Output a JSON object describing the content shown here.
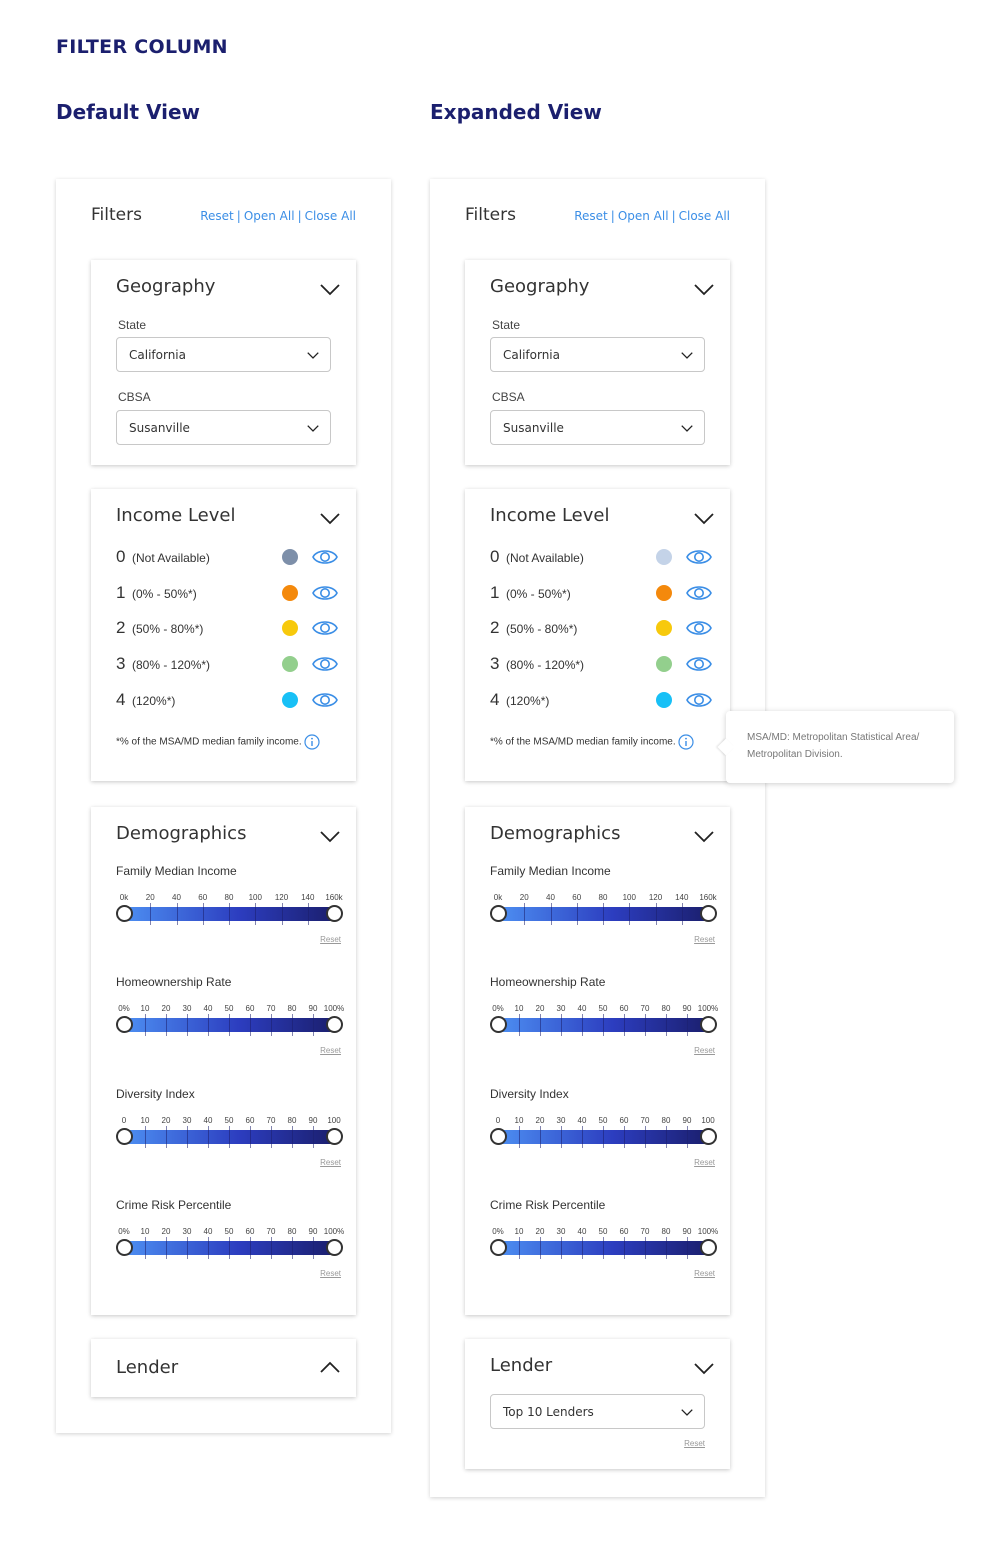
{
  "page": {
    "title": "FILTER COLUMN"
  },
  "default_view": {
    "title": "Default View"
  },
  "expanded_view": {
    "title": "Expanded View"
  },
  "filters": {
    "label": "Filters",
    "reset": "Reset",
    "open_all": "Open All",
    "close_all": "Close All",
    "separator": "|"
  },
  "geography": {
    "title": "Geography",
    "state_label": "State",
    "state_value": "California",
    "cbsa_label": "CBSA",
    "cbsa_value": "Susanville"
  },
  "income": {
    "title": "Income Level",
    "levels": [
      {
        "num": "0",
        "range": "(Not Available)"
      },
      {
        "num": "1",
        "range": "(0% - 50%*)"
      },
      {
        "num": "2",
        "range": "(50% - 80%*)"
      },
      {
        "num": "3",
        "range": "(80% - 120%*)"
      },
      {
        "num": "4",
        "range": "(120%*)"
      }
    ],
    "colors_default": [
      "#7d8fa9",
      "#f4890c",
      "#f7c90c",
      "#93cf8d",
      "#18c0f6"
    ],
    "colors_expanded": [
      "#c4d3e8",
      "#f4890c",
      "#f7c90c",
      "#93cf8d",
      "#18c0f6"
    ],
    "footnote": "*% of the MSA/MD median family income."
  },
  "tooltip": {
    "text": "MSA/MD: Metropolitan Statistical Area/ Metropolitan Division."
  },
  "demographics": {
    "title": "Demographics",
    "reset": "Reset",
    "sliders": [
      {
        "label": "Family Median Income",
        "ticks": [
          "0k",
          "20",
          "40",
          "60",
          "80",
          "100",
          "120",
          "140",
          "160k"
        ],
        "min": 0,
        "max": 160
      },
      {
        "label": "Homeownership Rate",
        "ticks": [
          "0%",
          "10",
          "20",
          "30",
          "40",
          "50",
          "60",
          "70",
          "80",
          "90",
          "100%"
        ],
        "min": 0,
        "max": 100
      },
      {
        "label": "Diversity Index",
        "ticks": [
          "0",
          "10",
          "20",
          "30",
          "40",
          "50",
          "60",
          "70",
          "80",
          "90",
          "100"
        ],
        "min": 0,
        "max": 100
      },
      {
        "label": "Crime Risk Percentile",
        "ticks": [
          "0%",
          "10",
          "20",
          "30",
          "40",
          "50",
          "60",
          "70",
          "80",
          "90",
          "100%"
        ],
        "min": 0,
        "max": 100
      }
    ]
  },
  "lender": {
    "title": "Lender",
    "value": "Top 10 Lenders",
    "reset": "Reset"
  },
  "icons": {
    "chevron": "chevron-icon",
    "eye": "eye-icon",
    "info": "info-icon",
    "eye_color": "#3b8ee6"
  }
}
